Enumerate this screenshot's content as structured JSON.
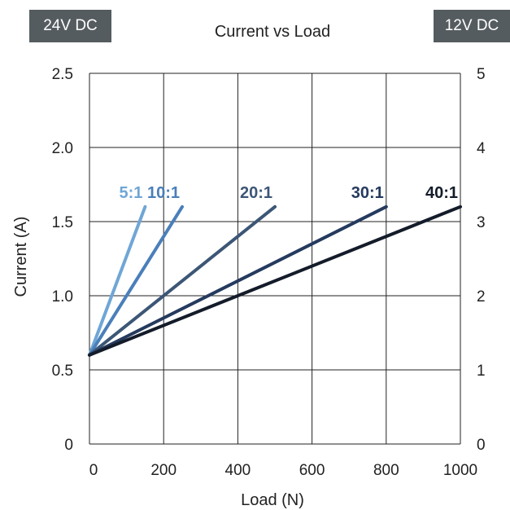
{
  "header": {
    "left_badge": "24V DC",
    "right_badge": "12V DC"
  },
  "colors": {
    "badge_bg": "#555c60",
    "grid": "#222222"
  },
  "chart_data": {
    "type": "line",
    "title": "Current vs Load",
    "xlabel": "Load (N)",
    "ylabel": "Current (A)",
    "xlim": [
      0,
      1000
    ],
    "ylim": [
      0,
      2.5
    ],
    "y2lim": [
      0,
      5
    ],
    "x_ticks": [
      "0",
      "200",
      "400",
      "600",
      "800",
      "1000"
    ],
    "y_ticks": [
      "0",
      "0.5",
      "1.0",
      "1.5",
      "2.0",
      "2.5"
    ],
    "y2_ticks": [
      "0",
      "1",
      "2",
      "3",
      "4",
      "5"
    ],
    "grid": true,
    "series": [
      {
        "name": "5:1",
        "color": "#6fa6d6",
        "x": [
          0,
          150
        ],
        "y": [
          0.6,
          1.6
        ]
      },
      {
        "name": "10:1",
        "color": "#4a7fba",
        "x": [
          0,
          250
        ],
        "y": [
          0.6,
          1.6
        ]
      },
      {
        "name": "20:1",
        "color": "#3c5676",
        "x": [
          0,
          500
        ],
        "y": [
          0.6,
          1.6
        ]
      },
      {
        "name": "30:1",
        "color": "#253a5e",
        "x": [
          0,
          800
        ],
        "y": [
          0.6,
          1.6
        ]
      },
      {
        "name": "40:1",
        "color": "#141c2a",
        "x": [
          0,
          1000
        ],
        "y": [
          0.6,
          1.6
        ]
      }
    ]
  }
}
